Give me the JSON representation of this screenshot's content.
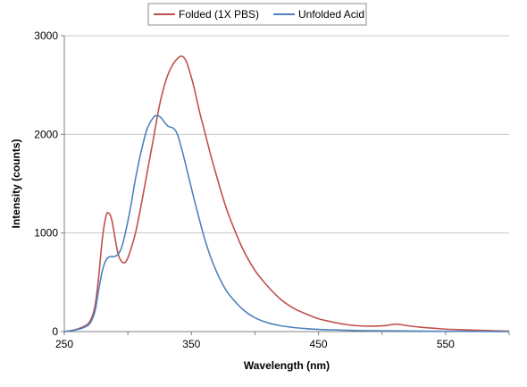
{
  "chart_data": {
    "type": "line",
    "title": "",
    "xlabel": "Wavelength (nm)",
    "ylabel": "Intensity (counts)",
    "xlim": [
      250,
      600
    ],
    "ylim": [
      0,
      3000
    ],
    "x_ticks": [
      250,
      350,
      450,
      550
    ],
    "y_ticks": [
      0,
      1000,
      2000,
      3000
    ],
    "grid": "horizontal",
    "legend_position": "top",
    "series": [
      {
        "name": "Folded (1X PBS)",
        "color": "#c0504d",
        "x": [
          250,
          255,
          260,
          265,
          270,
          274,
          277,
          280,
          283,
          285,
          287,
          289,
          291,
          293,
          296,
          299,
          302,
          306,
          310,
          315,
          320,
          325,
          330,
          335,
          340,
          343,
          346,
          349,
          352,
          356,
          360,
          365,
          370,
          375,
          380,
          390,
          400,
          410,
          420,
          430,
          440,
          450,
          460,
          470,
          480,
          490,
          500,
          505,
          510,
          515,
          520,
          530,
          540,
          550,
          560,
          570,
          580,
          590,
          600
        ],
        "y": [
          0,
          10,
          25,
          50,
          100,
          250,
          550,
          950,
          1180,
          1200,
          1150,
          1020,
          870,
          760,
          700,
          720,
          820,
          1000,
          1250,
          1600,
          1950,
          2300,
          2550,
          2700,
          2780,
          2790,
          2740,
          2620,
          2480,
          2250,
          2050,
          1800,
          1570,
          1350,
          1160,
          850,
          620,
          460,
          330,
          240,
          180,
          130,
          100,
          75,
          60,
          55,
          58,
          65,
          75,
          70,
          60,
          45,
          35,
          25,
          20,
          15,
          12,
          8,
          5
        ]
      },
      {
        "name": "Unfolded Acid",
        "color": "#4f81bd",
        "x": [
          250,
          255,
          260,
          265,
          270,
          274,
          277,
          280,
          283,
          286,
          289,
          292,
          295,
          298,
          302,
          306,
          310,
          315,
          320,
          323,
          326,
          329,
          332,
          336,
          339,
          342,
          345,
          348,
          352,
          356,
          360,
          365,
          370,
          375,
          380,
          390,
          400,
          410,
          420,
          430,
          440,
          450,
          460,
          470,
          480,
          490,
          500,
          510,
          520,
          530,
          540,
          550,
          560,
          570,
          580,
          590,
          600
        ],
        "y": [
          0,
          8,
          20,
          40,
          80,
          200,
          420,
          620,
          730,
          760,
          760,
          780,
          850,
          1000,
          1250,
          1550,
          1800,
          2050,
          2170,
          2190,
          2170,
          2120,
          2080,
          2060,
          2000,
          1870,
          1720,
          1560,
          1350,
          1150,
          960,
          760,
          600,
          470,
          370,
          230,
          140,
          90,
          60,
          42,
          30,
          22,
          18,
          14,
          11,
          9,
          8,
          7,
          6,
          5,
          4,
          3,
          3,
          2,
          2,
          1,
          1
        ]
      }
    ]
  }
}
